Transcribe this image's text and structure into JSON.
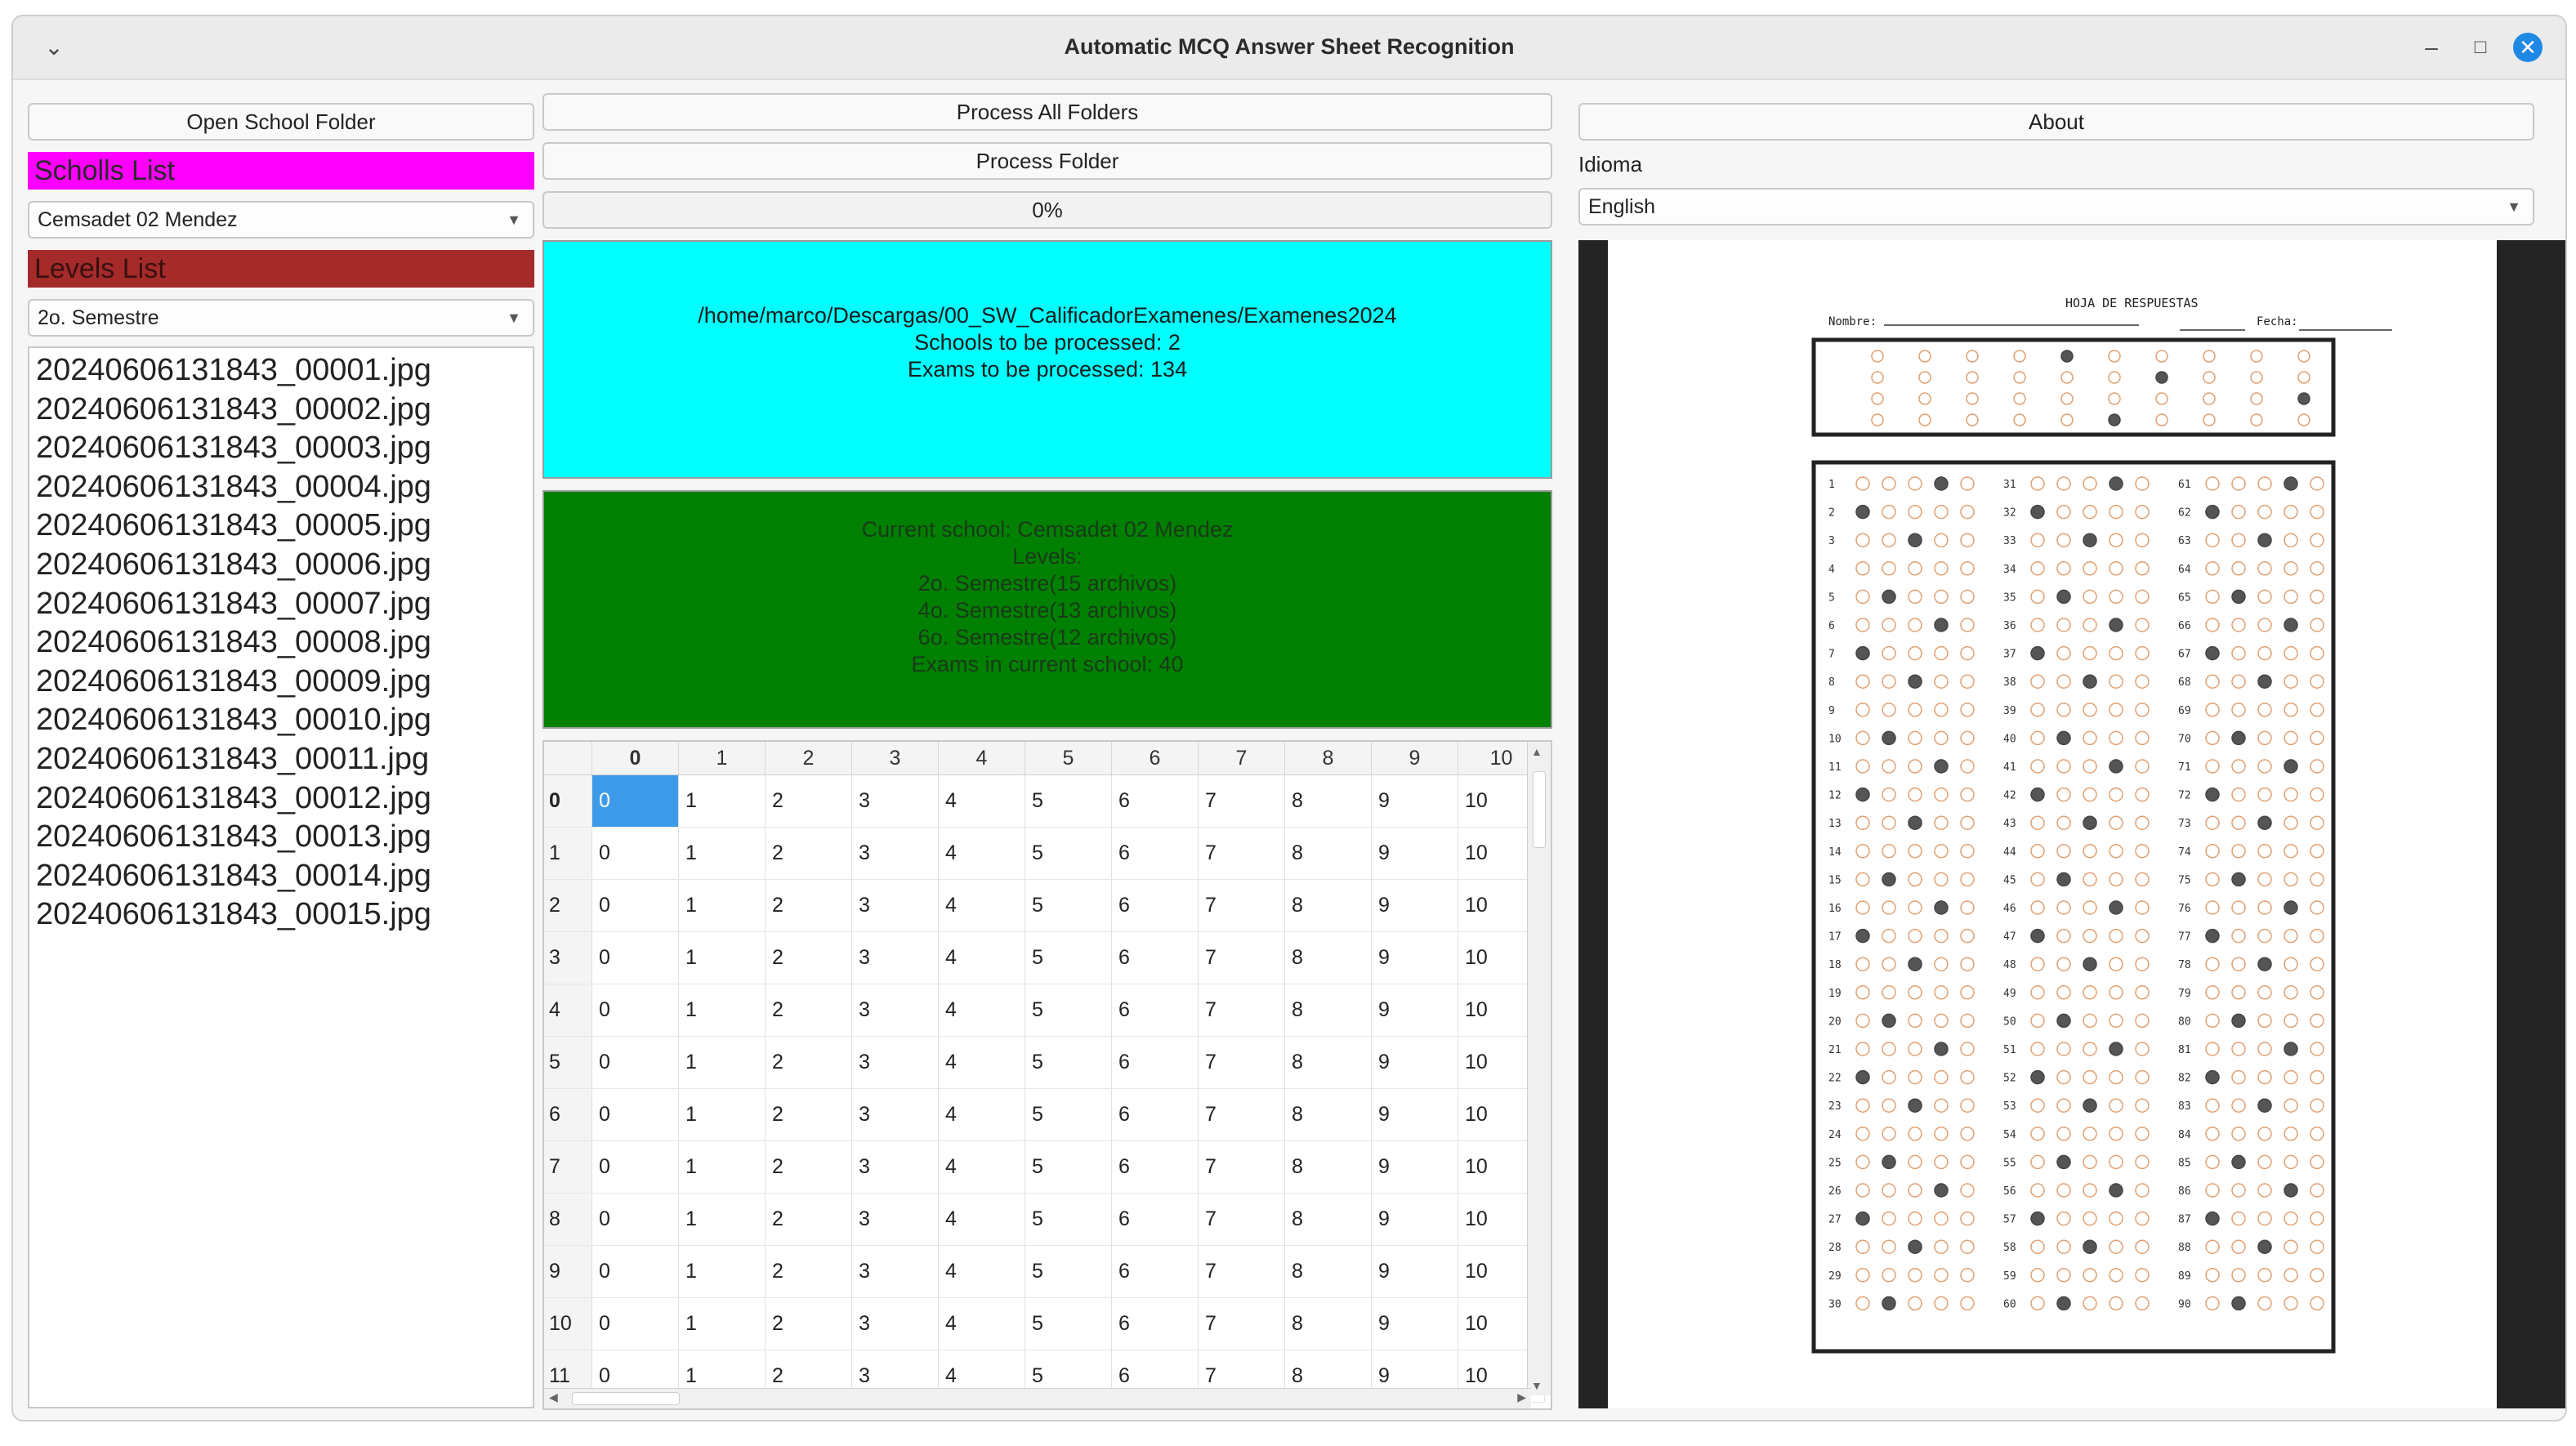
{
  "window": {
    "title": "Automatic MCQ Answer Sheet Recognition"
  },
  "left": {
    "open_school_folder": "Open School Folder",
    "schools_header": "Scholls List",
    "school_selected": "Cemsadet 02 Mendez",
    "levels_header": "Levels List",
    "level_selected": "2o. Semestre",
    "files": [
      "20240606131843_00001.jpg",
      "20240606131843_00002.jpg",
      "20240606131843_00003.jpg",
      "20240606131843_00004.jpg",
      "20240606131843_00005.jpg",
      "20240606131843_00006.jpg",
      "20240606131843_00007.jpg",
      "20240606131843_00008.jpg",
      "20240606131843_00009.jpg",
      "20240606131843_00010.jpg",
      "20240606131843_00011.jpg",
      "20240606131843_00012.jpg",
      "20240606131843_00013.jpg",
      "20240606131843_00014.jpg",
      "20240606131843_00015.jpg"
    ]
  },
  "middle": {
    "process_all": "Process All Folders",
    "process_folder": "Process Folder",
    "progress": "0%",
    "info": {
      "path": "/home/marco/Descargas/00_SW_CalificadorExamenes/Examenes2024",
      "schools": "Schools to be processed: 2",
      "exams": "Exams to be processed: 134"
    },
    "status": {
      "current_school": "Current school: Cemsadet 02 Mendez",
      "levels_label": "Levels:",
      "level1": "2o. Semestre(15 archivos)",
      "level2": "4o. Semestre(13 archivos)",
      "level3": "6o. Semestre(12 archivos)",
      "exams_current": "Exams in current school: 40"
    },
    "table": {
      "columns": [
        "0",
        "1",
        "2",
        "3",
        "4",
        "5",
        "6",
        "7",
        "8",
        "9",
        "10"
      ],
      "rows": [
        "0",
        "1",
        "2",
        "3",
        "4",
        "5",
        "6",
        "7",
        "8",
        "9",
        "10",
        "11"
      ],
      "cells": [
        "0",
        "1",
        "2",
        "3",
        "4",
        "5",
        "6",
        "7",
        "8",
        "9",
        "10"
      ]
    }
  },
  "right": {
    "about": "About",
    "language_label": "Idioma",
    "language_selected": "English",
    "sheet": {
      "title": "HOJA DE RESPUESTAS",
      "name_label": "Nombre:",
      "date_label": "Fecha:",
      "question_numbers": [
        "1",
        "2",
        "3",
        "4",
        "5",
        "6",
        "7",
        "8",
        "9",
        "10",
        "11",
        "12",
        "13",
        "14",
        "15",
        "16",
        "17",
        "18",
        "19",
        "20",
        "21",
        "22",
        "23",
        "24",
        "25",
        "26",
        "27",
        "28",
        "29",
        "30",
        "31",
        "32",
        "33",
        "34",
        "35",
        "36",
        "37",
        "38",
        "39",
        "40",
        "41",
        "42",
        "43",
        "44",
        "45",
        "46",
        "47",
        "48",
        "49",
        "50",
        "51",
        "52",
        "53",
        "54",
        "55",
        "56",
        "57",
        "58",
        "59",
        "60",
        "61",
        "62",
        "63",
        "64",
        "65",
        "66",
        "67",
        "68",
        "69",
        "70",
        "71",
        "72",
        "73",
        "74",
        "75",
        "76",
        "77",
        "78",
        "79",
        "80",
        "81",
        "82",
        "83",
        "84",
        "85",
        "86",
        "87",
        "88",
        "89",
        "90"
      ]
    }
  },
  "colors": {
    "schools_header": "#ff00ff",
    "levels_header": "#a52a2a",
    "info_panel": "#00ffff",
    "status_panel": "#008000",
    "selected_cell": "#3d9ae8"
  }
}
